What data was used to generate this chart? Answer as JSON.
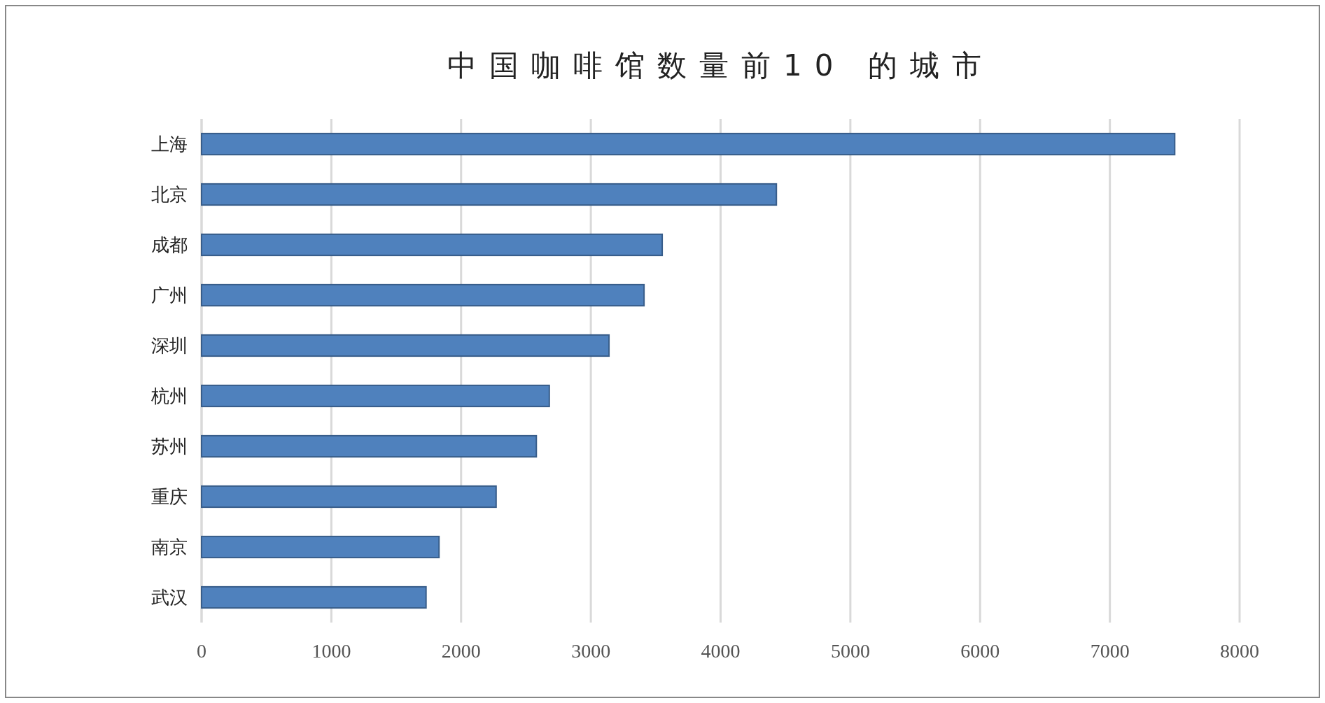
{
  "chart_data": {
    "type": "bar",
    "orientation": "horizontal",
    "title": "中国咖啡馆数量前10 的城市",
    "categories": [
      "上海",
      "北京",
      "成都",
      "广州",
      "深圳",
      "杭州",
      "苏州",
      "重庆",
      "南京",
      "武汉"
    ],
    "values": [
      7500,
      4430,
      3550,
      3410,
      3140,
      2680,
      2580,
      2270,
      1830,
      1730
    ],
    "color": "#4f81bd",
    "xlim": [
      0,
      8000
    ],
    "xticks": [
      0,
      1000,
      2000,
      3000,
      4000,
      5000,
      6000,
      7000,
      8000
    ],
    "grid": "x"
  }
}
